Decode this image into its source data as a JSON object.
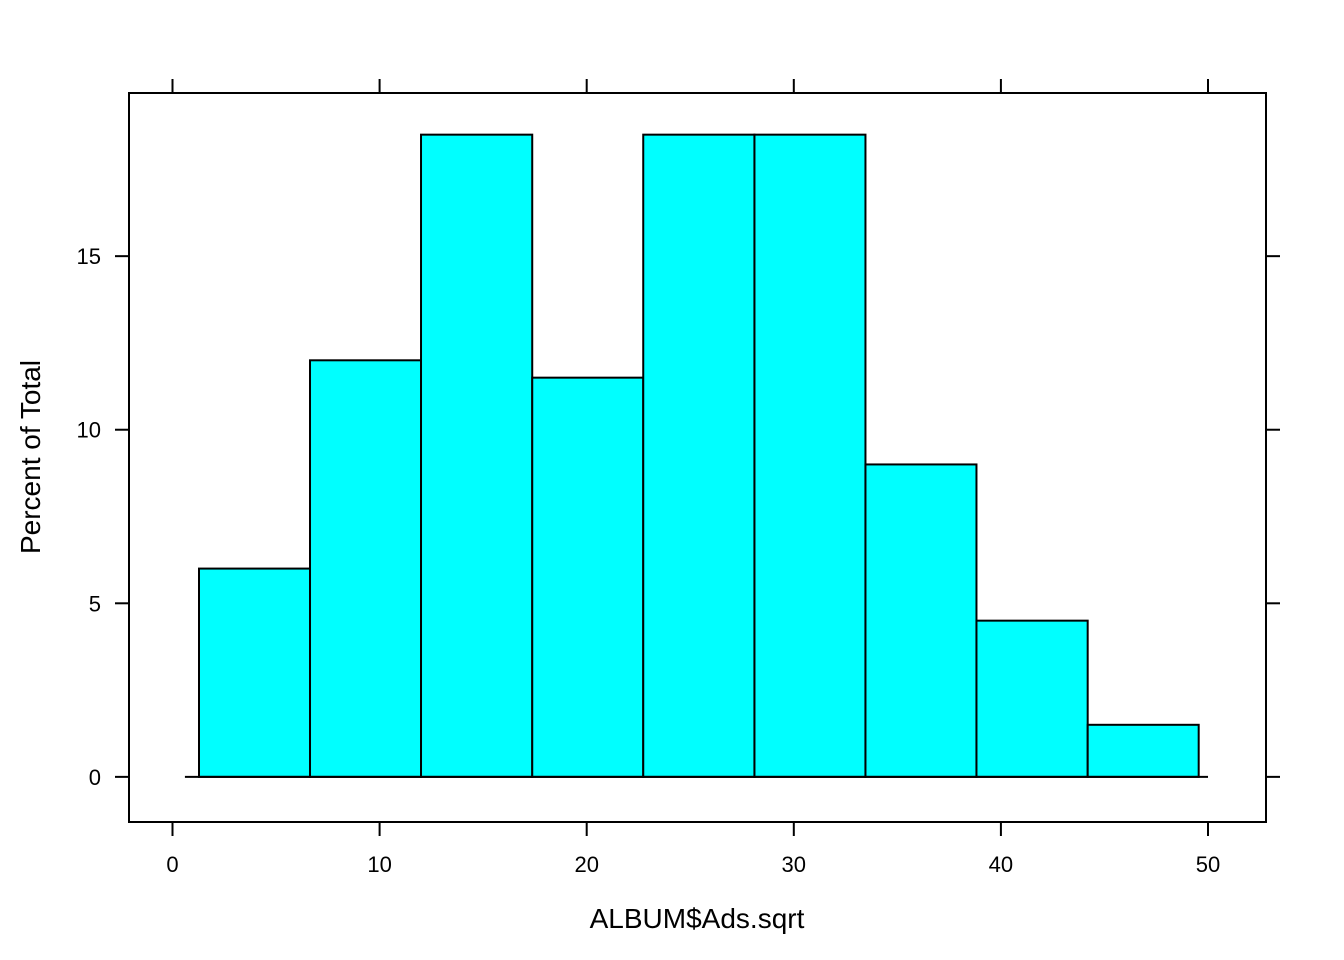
{
  "chart_data": {
    "type": "bar",
    "title": "",
    "xlabel": "ALBUM$Ads.sqrt",
    "ylabel": "Percent of Total",
    "xlim": [
      -2.1,
      52.8
    ],
    "ylim": [
      -1.3,
      19.7
    ],
    "x_ticks": [
      0,
      10,
      20,
      30,
      40,
      50
    ],
    "y_ticks": [
      0,
      5,
      10,
      15
    ],
    "bins": [
      {
        "x0": 1.28,
        "x1": 6.64,
        "value": 6.0
      },
      {
        "x0": 6.64,
        "x1": 12.0,
        "value": 12.0
      },
      {
        "x0": 12.0,
        "x1": 17.37,
        "value": 18.5
      },
      {
        "x0": 17.37,
        "x1": 22.73,
        "value": 11.5
      },
      {
        "x0": 22.73,
        "x1": 28.1,
        "value": 18.5
      },
      {
        "x0": 28.1,
        "x1": 33.46,
        "value": 18.5
      },
      {
        "x0": 33.46,
        "x1": 38.82,
        "value": 9.0
      },
      {
        "x0": 38.82,
        "x1": 44.19,
        "value": 4.5
      },
      {
        "x0": 44.19,
        "x1": 49.55,
        "value": 1.5
      }
    ],
    "baseline": [
      0.6,
      50.0
    ],
    "bar_color": "#00FFFF",
    "border_color": "#000000",
    "grid": false,
    "legend": "none"
  }
}
